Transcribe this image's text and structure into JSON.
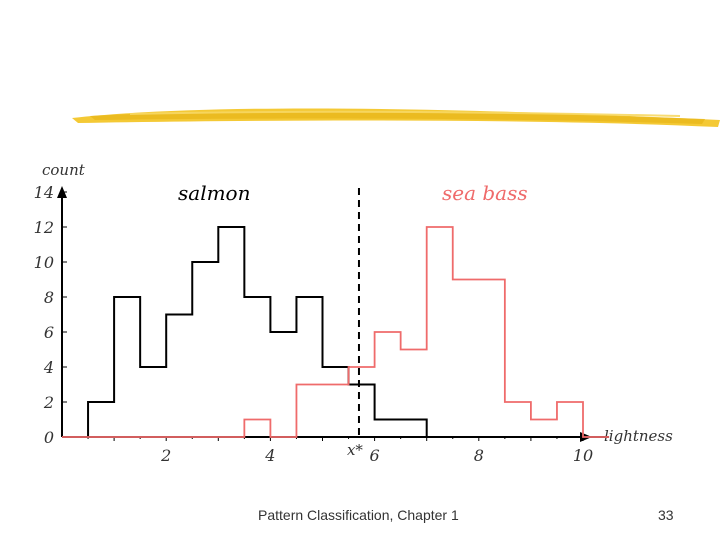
{
  "colors": {
    "salmon": "#000000",
    "sea_bass": "#ef6b6b",
    "brush": "#f3c62a",
    "text": "#333333"
  },
  "footer": {
    "course": "Pattern Classification, Chapter 1",
    "page_number": "33"
  },
  "chart_data": {
    "type": "histogram",
    "title": "",
    "xlabel": "lightness",
    "ylabel": "count",
    "xlim": [
      0,
      10.2
    ],
    "ylim": [
      0,
      14
    ],
    "x_ticks": [
      2,
      4,
      6,
      8,
      10
    ],
    "y_ticks": [
      0,
      2,
      4,
      6,
      8,
      10,
      12,
      14
    ],
    "bin_width": 0.5,
    "bin_start": 0.5,
    "threshold": {
      "label": "x*",
      "x": 5.7
    },
    "series": [
      {
        "name": "salmon",
        "color": "#000000",
        "values": [
          2,
          8,
          4,
          7,
          10,
          12,
          8,
          6,
          8,
          4,
          3,
          1,
          1,
          0,
          0,
          0,
          0,
          0,
          0,
          0
        ]
      },
      {
        "name": "sea bass",
        "color": "#ef6b6b",
        "values": [
          0,
          0,
          0,
          0,
          0,
          0,
          1,
          0,
          3,
          3,
          4,
          6,
          5,
          12,
          9,
          9,
          2,
          1,
          2,
          0
        ]
      }
    ]
  }
}
